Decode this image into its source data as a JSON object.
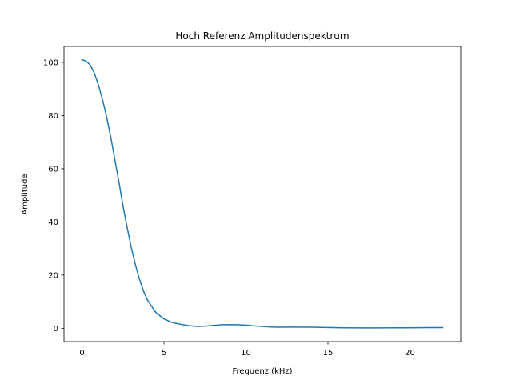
{
  "chart_data": {
    "type": "line",
    "title": "Hoch Referenz Amplitudenspektrum",
    "xlabel": "Frequenz (kHz)",
    "ylabel": "Amplitude",
    "xlim": [
      -1.1,
      23.1
    ],
    "ylim": [
      -5,
      106
    ],
    "x_ticks": [
      0,
      5,
      10,
      15,
      20
    ],
    "y_ticks": [
      0,
      20,
      40,
      60,
      80,
      100
    ],
    "x_tick_labels": [
      "0",
      "5",
      "10",
      "15",
      "20"
    ],
    "y_tick_labels": [
      "0",
      "20",
      "40",
      "60",
      "80",
      "100"
    ],
    "grid": false,
    "legend": "none",
    "series": [
      {
        "color": "#1f77b4",
        "x": [
          0,
          0.25,
          0.5,
          0.75,
          1.0,
          1.25,
          1.5,
          1.75,
          2.0,
          2.25,
          2.5,
          2.75,
          3.0,
          3.25,
          3.5,
          3.75,
          4.0,
          4.5,
          5.0,
          5.5,
          6.0,
          6.5,
          7.0,
          7.5,
          8.0,
          8.5,
          9.0,
          9.5,
          10.0,
          10.5,
          11.0,
          11.5,
          12.0,
          13.0,
          14.0,
          15.0,
          16.0,
          17.0,
          18.0,
          19.0,
          20.0,
          21.0,
          22.0
        ],
        "y": [
          101.0,
          100.5,
          99.0,
          96.0,
          91.5,
          86.0,
          79.5,
          72.0,
          63.5,
          55.0,
          46.0,
          38.0,
          30.5,
          24.0,
          18.5,
          14.0,
          10.5,
          6.0,
          3.5,
          2.2,
          1.5,
          1.0,
          0.7,
          0.8,
          1.1,
          1.3,
          1.4,
          1.3,
          1.2,
          0.9,
          0.7,
          0.5,
          0.4,
          0.45,
          0.4,
          0.3,
          0.2,
          0.15,
          0.15,
          0.2,
          0.2,
          0.25,
          0.25
        ]
      }
    ]
  }
}
